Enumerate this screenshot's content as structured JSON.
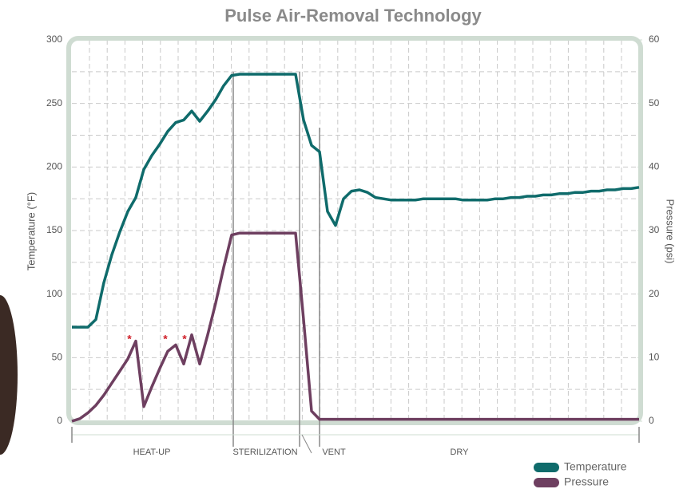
{
  "chart_data": {
    "type": "line",
    "title": "Pulse Air-Removal Technology",
    "y_label": "Temperature (°F)",
    "y2_label": "Pressure (psi)",
    "categories": [
      null,
      null,
      null,
      null,
      null,
      null,
      null,
      null,
      null,
      null,
      null,
      null,
      null,
      null,
      null,
      null,
      null,
      null,
      null,
      null,
      null,
      null,
      null,
      null,
      null,
      null,
      null,
      null,
      null,
      null,
      null,
      null,
      null,
      null,
      null,
      null,
      null,
      null,
      null,
      null,
      null,
      null,
      null,
      null,
      null,
      null,
      null,
      null,
      null,
      null,
      null,
      null,
      null,
      null,
      null,
      null,
      null,
      null,
      null,
      null,
      null,
      null,
      null,
      null,
      null,
      null,
      null,
      null,
      null,
      null,
      null,
      null
    ],
    "series": [
      {
        "name": "Temperature",
        "color": "#0f6b6b",
        "axis": "y",
        "values": [
          74,
          74,
          74,
          80,
          109,
          131,
          149,
          165,
          176,
          198,
          209,
          218,
          228,
          235,
          237,
          244,
          236,
          244,
          253,
          264,
          272,
          273,
          273,
          273,
          273,
          273,
          273,
          273,
          273,
          237,
          217,
          212,
          165,
          154,
          175,
          181,
          182,
          180,
          176,
          175,
          174,
          174,
          174,
          174,
          175,
          175,
          175,
          175,
          175,
          174,
          174,
          174,
          174,
          175,
          175,
          176,
          176,
          177,
          177,
          178,
          178,
          179,
          179,
          180,
          180,
          181,
          181,
          182,
          182,
          183,
          183,
          184
        ]
      },
      {
        "name": "Pressure",
        "color": "#6e3f60",
        "axis": "y2",
        "values": [
          0,
          0.4,
          1.3,
          2.5,
          4.1,
          6,
          7.9,
          9.8,
          12.6,
          2.3,
          5.4,
          8.3,
          11,
          12,
          9,
          13.6,
          9,
          13.6,
          18.6,
          24.2,
          29.3,
          29.6,
          29.6,
          29.6,
          29.6,
          29.6,
          29.6,
          29.6,
          29.6,
          16,
          1.6,
          0.3,
          0.3,
          0.3,
          0.3,
          0.3,
          0.3,
          0.3,
          0.3,
          0.3,
          0.3,
          0.3,
          0.3,
          0.3,
          0.3,
          0.3,
          0.3,
          0.3,
          0.3,
          0.3,
          0.3,
          0.3,
          0.3,
          0.3,
          0.3,
          0.3,
          0.3,
          0.3,
          0.3,
          0.3,
          0.3,
          0.3,
          0.3,
          0.3,
          0.3,
          0.3,
          0.3,
          0.3,
          0.3,
          0.3,
          0.3,
          0.3
        ]
      }
    ],
    "ylim": [
      0,
      300
    ],
    "yticks": [
      0,
      50,
      100,
      150,
      200,
      250,
      300
    ],
    "y2lim": [
      0,
      60
    ],
    "y2ticks": [
      0,
      10,
      20,
      30,
      40,
      50,
      60
    ],
    "grid": true,
    "phases": [
      "HEAT-UP",
      "STERILIZATION",
      "VENT",
      "DRY"
    ],
    "annotations": [
      "*",
      "*",
      "*"
    ],
    "legend": "bottom-right"
  }
}
